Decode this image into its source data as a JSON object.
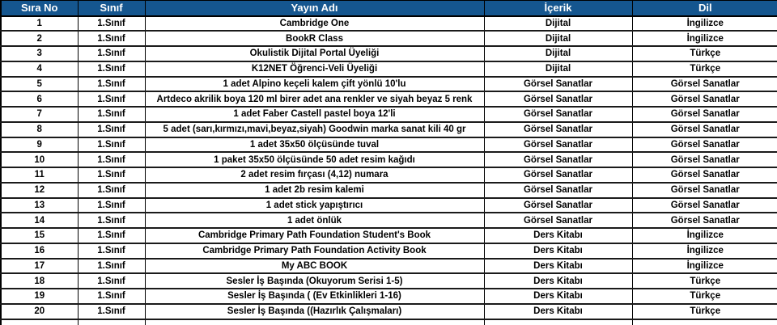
{
  "colors": {
    "header_bg": "#15568F",
    "header_text": "#FFFFFF",
    "body_text": "#000000",
    "border": "#000000",
    "border_horizontal": "#1A1A1A",
    "row_bg": "#FFFFFF"
  },
  "table": {
    "columns": [
      {
        "key": "sira-no",
        "label": "Sıra No"
      },
      {
        "key": "sinif",
        "label": "Sınıf"
      },
      {
        "key": "yayin-adi",
        "label": "Yayın Adı"
      },
      {
        "key": "icerik",
        "label": "İçerik"
      },
      {
        "key": "dil",
        "label": "Dil"
      }
    ],
    "rows": [
      [
        "1",
        "1.Sınıf",
        "Cambridge One",
        "Dijital",
        "İngilizce"
      ],
      [
        "2",
        "1.Sınıf",
        "BookR Class",
        "Dijital",
        "İngilizce"
      ],
      [
        "3",
        "1.Sınıf",
        "Okulistik Dijital Portal Üyeliği",
        "Dijital",
        "Türkçe"
      ],
      [
        "4",
        "1.Sınıf",
        "K12NET Öğrenci-Veli Üyeliği",
        "Dijital",
        "Türkçe"
      ],
      [
        "5",
        "1.Sınıf",
        "1 adet Alpino keçeli kalem çift yönlü 10'lu",
        "Görsel Sanatlar",
        "Görsel Sanatlar"
      ],
      [
        "6",
        "1.Sınıf",
        "Artdeco akrilik boya 120 ml birer adet ana renkler ve siyah beyaz 5 renk",
        "Görsel Sanatlar",
        "Görsel Sanatlar"
      ],
      [
        "7",
        "1.Sınıf",
        "1 adet Faber Castell pastel boya 12'li",
        "Görsel Sanatlar",
        "Görsel Sanatlar"
      ],
      [
        "8",
        "1.Sınıf",
        "5 adet (sarı,kırmızı,mavi,beyaz,siyah) Goodwin marka sanat kili 40 gr",
        "Görsel Sanatlar",
        "Görsel Sanatlar"
      ],
      [
        "9",
        "1.Sınıf",
        "1 adet 35x50 ölçüsünde tuval",
        "Görsel Sanatlar",
        "Görsel Sanatlar"
      ],
      [
        "10",
        "1.Sınıf",
        "1 paket 35x50 ölçüsünde 50 adet resim kağıdı",
        "Görsel Sanatlar",
        "Görsel Sanatlar"
      ],
      [
        "11",
        "1.Sınıf",
        "2 adet resim fırçası (4,12) numara",
        "Görsel Sanatlar",
        "Görsel Sanatlar"
      ],
      [
        "12",
        "1.Sınıf",
        "1 adet 2b resim kalemi",
        "Görsel Sanatlar",
        "Görsel Sanatlar"
      ],
      [
        "13",
        "1.Sınıf",
        "1 adet stick yapıştırıcı",
        "Görsel Sanatlar",
        "Görsel Sanatlar"
      ],
      [
        "14",
        "1.Sınıf",
        "1 adet önlük",
        "Görsel Sanatlar",
        "Görsel Sanatlar"
      ],
      [
        "15",
        "1.Sınıf",
        "Cambridge Primary Path Foundation Student's Book",
        "Ders Kitabı",
        "İngilizce"
      ],
      [
        "16",
        "1.Sınıf",
        "Cambridge Primary Path Foundation Activity Book",
        "Ders Kitabı",
        "İngilizce"
      ],
      [
        "17",
        "1.Sınıf",
        "My ABC BOOK",
        "Ders Kitabı",
        "İngilizce"
      ],
      [
        "18",
        "1.Sınıf",
        "Sesler İş Başında (Okuyorum Serisi 1-5)",
        "Ders Kitabı",
        "Türkçe"
      ],
      [
        "19",
        "1.Sınıf",
        "Sesler İş Başında ( (Ev Etkinlikleri 1-16)",
        "Ders Kitabı",
        "Türkçe"
      ],
      [
        "20",
        "1.Sınıf",
        "Sesler İş Başında ((Hazırlık Çalışmaları)",
        "Ders Kitabı",
        "Türkçe"
      ]
    ],
    "partial_row": [
      "",
      "",
      "",
      "",
      ""
    ]
  }
}
